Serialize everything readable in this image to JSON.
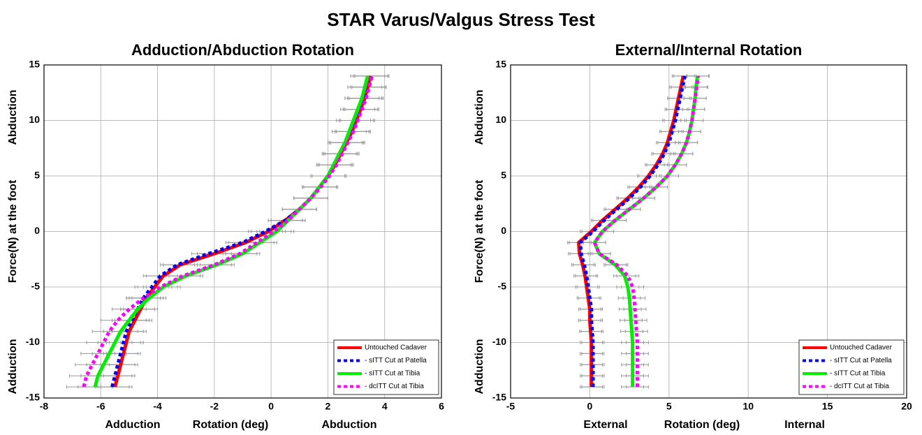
{
  "title": "STAR Varus/Valgus Stress Test",
  "chart_data": [
    {
      "type": "line",
      "title": "Adduction/Abduction Rotation",
      "ylabel": [
        "Abduction",
        "Force(N) at the foot",
        "Adduction"
      ],
      "xlabel": [
        "Adduction",
        "Rotation (deg)",
        "Abduction"
      ],
      "xlim": [
        -8,
        6
      ],
      "xticks": [
        -8,
        -6,
        -4,
        -2,
        0,
        2,
        4,
        6
      ],
      "ylim": [
        -15,
        15
      ],
      "yticks": [
        -15,
        -10,
        -5,
        0,
        5,
        10,
        15
      ],
      "grid": true,
      "legend": "lower right",
      "y": [
        -14,
        -13,
        -12,
        -11,
        -10,
        -9,
        -8,
        -7,
        -6,
        -5,
        -4,
        -3,
        -2,
        -1,
        0,
        1,
        2,
        3,
        4,
        5,
        6,
        7,
        8,
        9,
        10,
        11,
        12,
        13,
        14
      ],
      "series": [
        {
          "name": "Untouched Cadaver",
          "color": "#ff0000",
          "style": "solid",
          "error": 0.6,
          "values": [
            -5.5,
            -5.4,
            -5.3,
            -5.2,
            -5.1,
            -5.0,
            -4.8,
            -4.6,
            -4.4,
            -4.1,
            -3.8,
            -3.2,
            -2.0,
            -0.9,
            -0.1,
            0.5,
            1.0,
            1.4,
            1.7,
            2.0,
            2.25,
            2.45,
            2.65,
            2.85,
            3.0,
            3.15,
            3.3,
            3.4,
            3.5
          ]
        },
        {
          "name": "- sITT Cut at Patella",
          "color": "#0000ff",
          "style": "dotted",
          "error": 0.6,
          "values": [
            -5.6,
            -5.5,
            -5.4,
            -5.3,
            -5.2,
            -5.1,
            -4.9,
            -4.7,
            -4.5,
            -4.2,
            -3.9,
            -3.3,
            -2.2,
            -1.0,
            -0.2,
            0.5,
            1.0,
            1.4,
            1.7,
            2.0,
            2.25,
            2.45,
            2.65,
            2.85,
            3.0,
            3.15,
            3.3,
            3.45,
            3.55
          ]
        },
        {
          "name": "- sITT Cut at Tibia",
          "color": "#00ee00",
          "style": "solid",
          "error": 0.6,
          "values": [
            -6.2,
            -6.1,
            -5.9,
            -5.7,
            -5.5,
            -5.3,
            -5.0,
            -4.7,
            -4.3,
            -3.8,
            -3.0,
            -1.9,
            -1.0,
            -0.4,
            0.2,
            0.6,
            1.0,
            1.4,
            1.7,
            2.0,
            2.2,
            2.4,
            2.6,
            2.75,
            2.9,
            3.05,
            3.2,
            3.3,
            3.4
          ]
        },
        {
          "name": "- dcITT Cut at Tibia",
          "color": "#ff00ff",
          "style": "dotted",
          "error": 0.6,
          "values": [
            -6.6,
            -6.5,
            -6.3,
            -6.1,
            -5.9,
            -5.7,
            -5.4,
            -5.0,
            -4.5,
            -3.9,
            -3.1,
            -2.0,
            -1.1,
            -0.5,
            0.1,
            0.6,
            1.0,
            1.4,
            1.75,
            2.05,
            2.3,
            2.5,
            2.7,
            2.9,
            3.05,
            3.2,
            3.35,
            3.45,
            3.55
          ]
        }
      ]
    },
    {
      "type": "line",
      "title": "External/Internal Rotation",
      "ylabel": [
        "Abduction",
        "Force(N) at the foot",
        "Adduction"
      ],
      "xlabel": [
        "External",
        "Rotation (deg)",
        "Internal"
      ],
      "xlim": [
        -5,
        20
      ],
      "xticks": [
        -5,
        0,
        5,
        10,
        15,
        20
      ],
      "ylim": [
        -15,
        15
      ],
      "yticks": [
        -15,
        -10,
        -5,
        0,
        5,
        10,
        15
      ],
      "grid": true,
      "legend": "lower right",
      "y": [
        -14,
        -13,
        -12,
        -11,
        -10,
        -9,
        -8,
        -7,
        -6,
        -5,
        -4,
        -3,
        -2,
        -1,
        0,
        1,
        2,
        3,
        4,
        5,
        6,
        7,
        8,
        9,
        10,
        11,
        12,
        13,
        14
      ],
      "series": [
        {
          "name": "Untouched Cadaver",
          "color": "#ff0000",
          "style": "solid",
          "error": 0.7,
          "values": [
            0.1,
            0.1,
            0.1,
            0.1,
            0.1,
            0.05,
            0.0,
            0.0,
            -0.1,
            -0.2,
            -0.3,
            -0.45,
            -0.65,
            -0.7,
            0.1,
            0.8,
            1.6,
            2.4,
            3.1,
            3.7,
            4.2,
            4.6,
            4.9,
            5.1,
            5.3,
            5.45,
            5.6,
            5.75,
            5.9
          ]
        },
        {
          "name": "- sITT Cut at Patella",
          "color": "#0000ff",
          "style": "dotted",
          "error": 0.7,
          "values": [
            0.2,
            0.2,
            0.2,
            0.2,
            0.2,
            0.15,
            0.1,
            0.1,
            0.0,
            -0.1,
            -0.2,
            -0.35,
            -0.55,
            -0.6,
            0.2,
            0.9,
            1.7,
            2.5,
            3.2,
            3.8,
            4.3,
            4.7,
            5.0,
            5.2,
            5.4,
            5.55,
            5.7,
            5.85,
            6.0
          ]
        },
        {
          "name": "- sITT Cut at Tibia",
          "color": "#00ee00",
          "style": "solid",
          "error": 0.7,
          "values": [
            2.7,
            2.7,
            2.7,
            2.7,
            2.7,
            2.65,
            2.6,
            2.55,
            2.5,
            2.4,
            2.2,
            1.6,
            0.6,
            0.3,
            0.8,
            1.6,
            2.5,
            3.4,
            4.2,
            4.9,
            5.4,
            5.8,
            6.1,
            6.3,
            6.45,
            6.55,
            6.65,
            6.7,
            6.8
          ]
        },
        {
          "name": "- dcITT Cut at Tibia",
          "color": "#ff00ff",
          "style": "dotted",
          "error": 0.7,
          "values": [
            3.0,
            3.0,
            3.0,
            3.0,
            3.0,
            2.95,
            2.9,
            2.85,
            2.8,
            2.7,
            2.4,
            1.7,
            0.6,
            0.3,
            0.8,
            1.6,
            2.5,
            3.4,
            4.2,
            4.9,
            5.4,
            5.8,
            6.1,
            6.3,
            6.45,
            6.55,
            6.65,
            6.75,
            6.85
          ]
        }
      ]
    }
  ]
}
